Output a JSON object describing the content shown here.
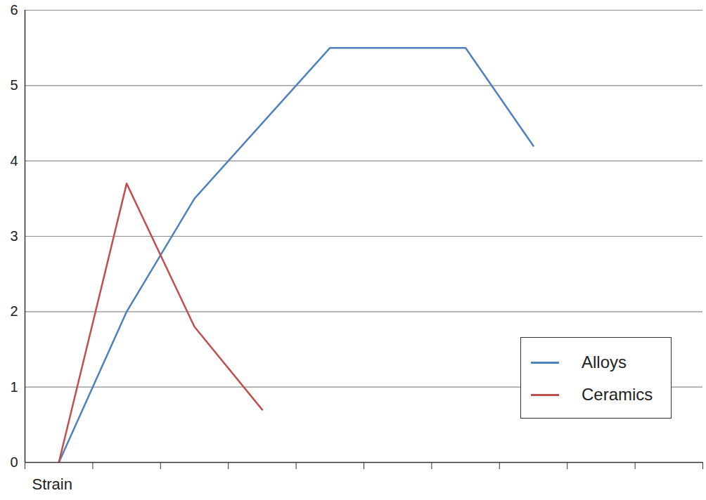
{
  "chart_data": {
    "type": "line",
    "x_label": "Strain",
    "series": [
      {
        "name": "Alloys",
        "color": "#4F81BD",
        "x": [
          0.5,
          1.5,
          2.5,
          4.5,
          6.5,
          7.5
        ],
        "values": [
          0,
          2,
          3.5,
          5.5,
          5.5,
          4.2
        ]
      },
      {
        "name": "Ceramics",
        "color": "#C0504D",
        "x": [
          0.5,
          1.5,
          2.5,
          3.5
        ],
        "values": [
          0,
          3.7,
          1.8,
          0.7
        ]
      }
    ],
    "xlim": [
      0,
      10
    ],
    "xticks": [
      0,
      1,
      2,
      3,
      4,
      5,
      6,
      7,
      8,
      9,
      10
    ],
    "ylim": [
      0,
      6
    ],
    "yticks": [
      0,
      1,
      2,
      3,
      4,
      5,
      6
    ],
    "grid": true,
    "legend": "lower right",
    "tick_labels": "y"
  }
}
